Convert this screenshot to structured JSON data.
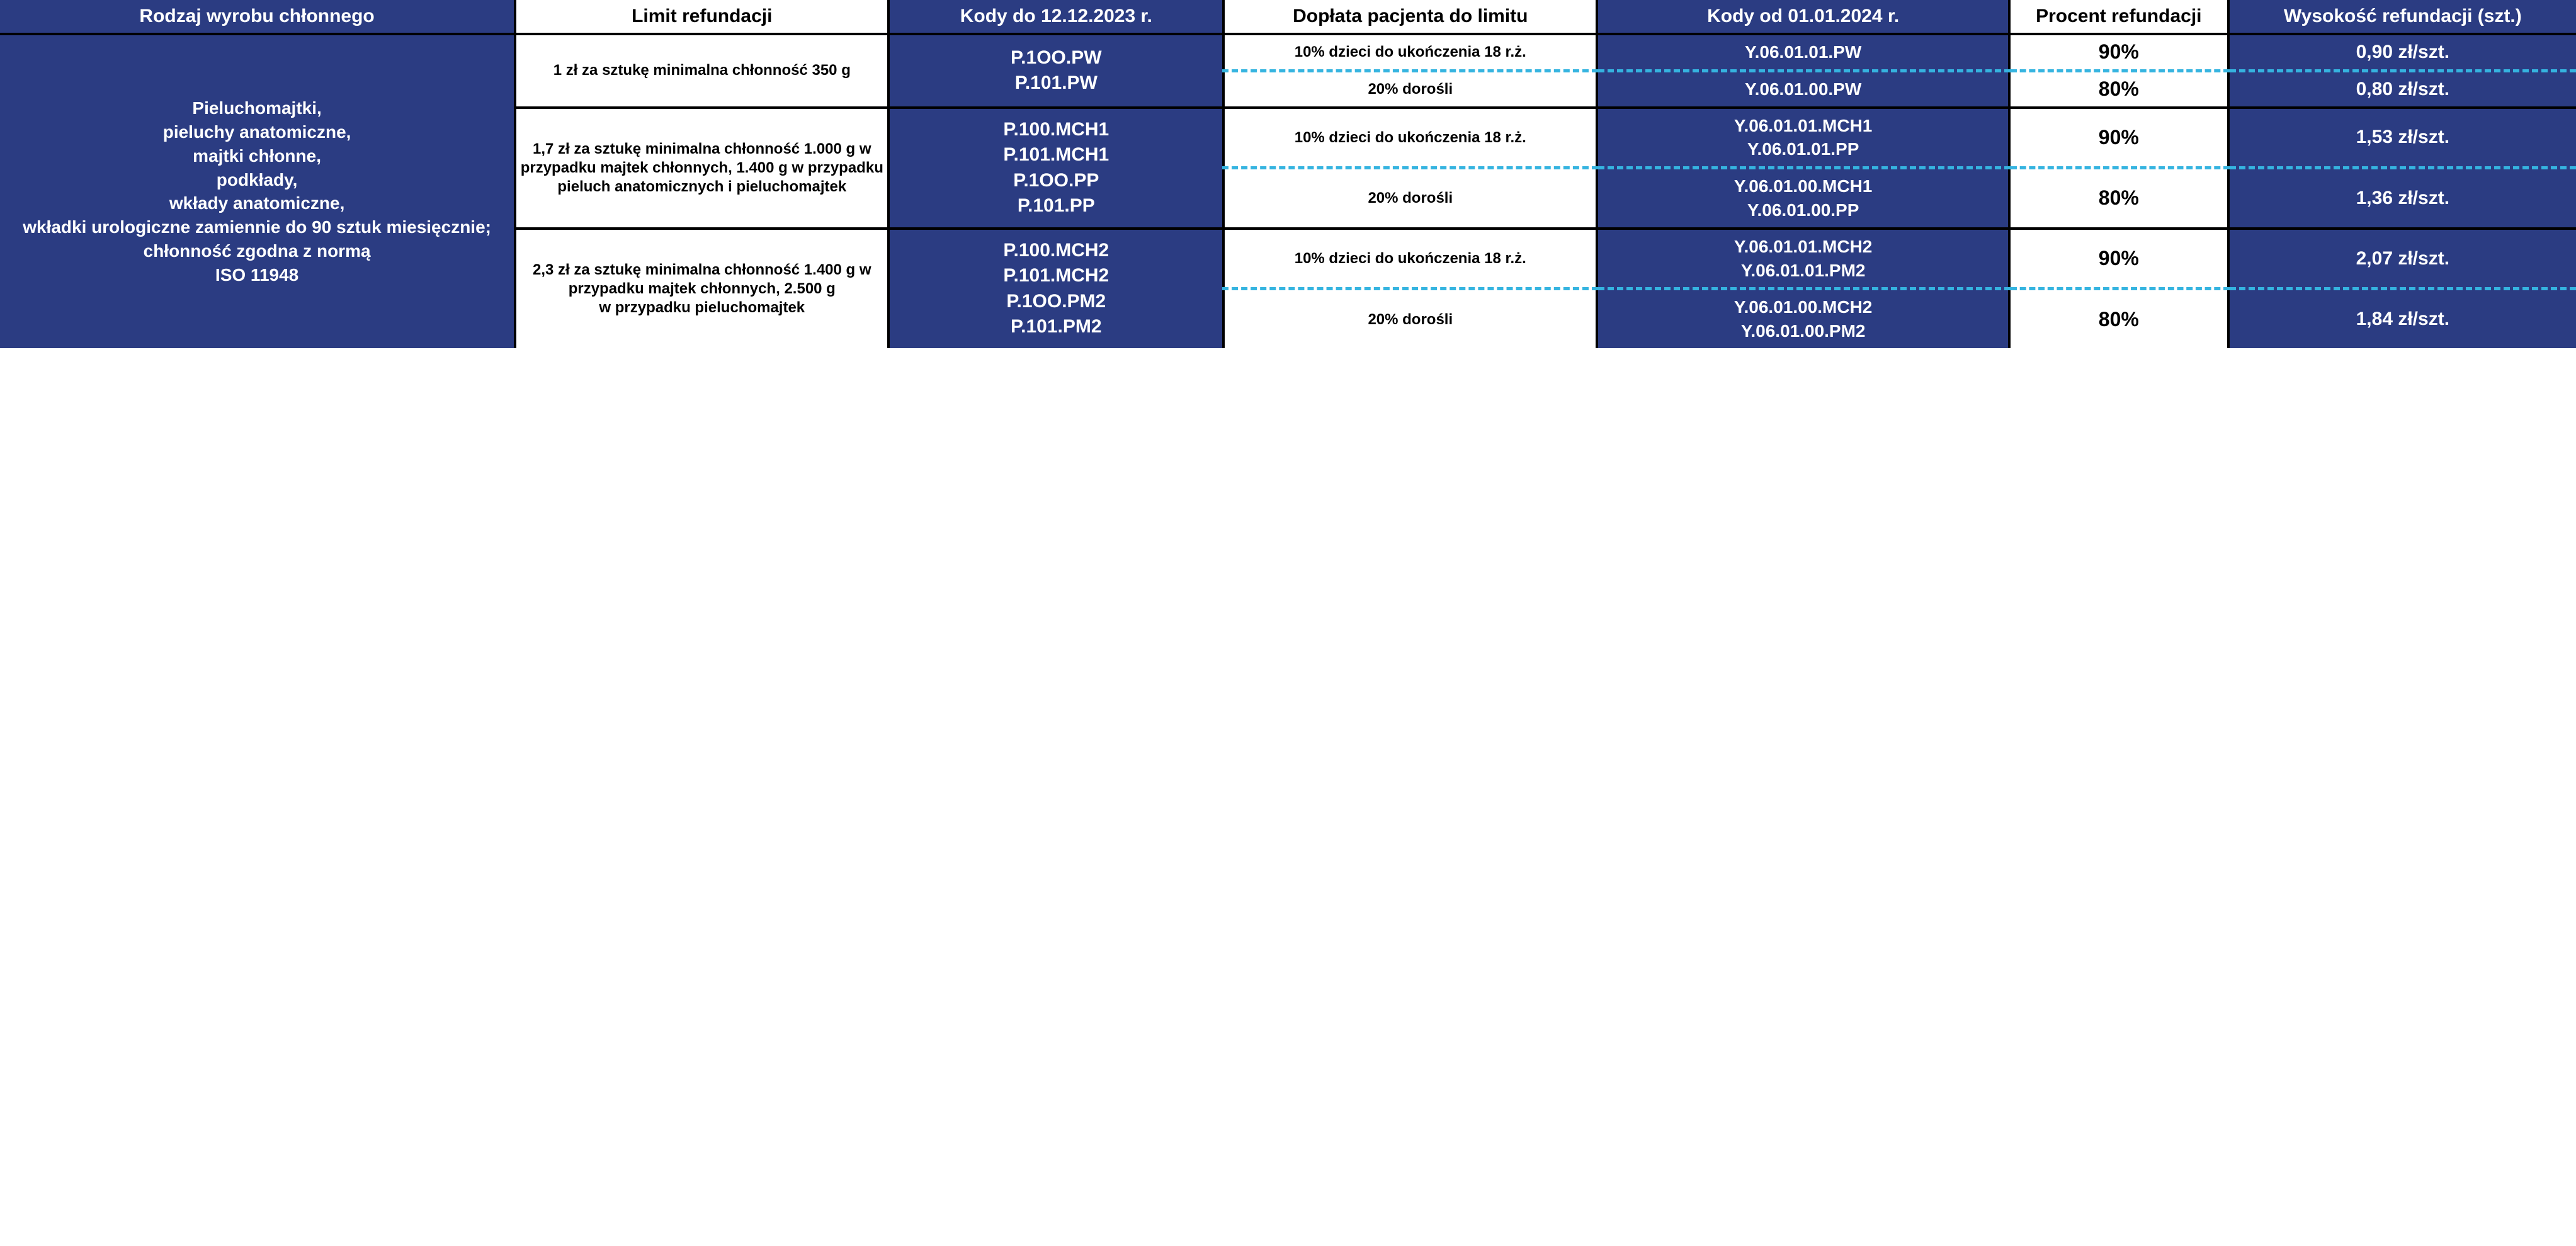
{
  "colors": {
    "blue": "#2b3c82",
    "dash": "#35b4e0",
    "black": "#000000",
    "white": "#ffffff"
  },
  "headers": {
    "c1": "Rodzaj wyrobu chłonnego",
    "c2": "Limit refundacji",
    "c3": "Kody do 12.12.2023 r.",
    "c4": "Dopłata pacjenta do limitu",
    "c5": "Kody od 01.01.2024 r.",
    "c6": "Procent refundacji",
    "c7": "Wysokość refundacji (szt.)"
  },
  "rowlabel": "Pieluchomajtki,\npieluchy anatomiczne,\nmajtki chłonne,\npodkłady,\nwkłady anatomiczne,\nwkładki urologiczne zamiennie do 90 sztuk miesięcznie; chłonność zgodna z normą\nISO 11948",
  "groups": [
    {
      "limit": "1 zł za sztukę minimalna chłonność 350 g",
      "codes_old": "P.1OO.PW\nP.101.PW",
      "rows": [
        {
          "surcharge": "10% dzieci do ukończenia 18 r.ż.",
          "codes_new": "Y.06.01.01.PW",
          "pct": "90%",
          "amt": "0,90 zł/szt."
        },
        {
          "surcharge": "20% dorośli",
          "codes_new": "Y.06.01.00.PW",
          "pct": "80%",
          "amt": "0,80 zł/szt."
        }
      ]
    },
    {
      "limit": "1,7 zł za sztukę minimalna chłonność 1.000 g w przypadku majtek chłonnych, 1.400 g w przypadku pieluch anatomicznych i pieluchomajtek",
      "codes_old": "P.100.MCH1\nP.101.MCH1\nP.1OO.PP\nP.101.PP",
      "rows": [
        {
          "surcharge": "10% dzieci do ukończenia 18 r.ż.",
          "codes_new": "Y.06.01.01.MCH1\nY.06.01.01.PP",
          "pct": "90%",
          "amt": "1,53 zł/szt."
        },
        {
          "surcharge": "20% dorośli",
          "codes_new": "Y.06.01.00.MCH1\nY.06.01.00.PP",
          "pct": "80%",
          "amt": "1,36 zł/szt."
        }
      ]
    },
    {
      "limit": "2,3 zł za sztukę minimalna chłonność 1.400 g w przypadku majtek chłonnych, 2.500 g\nw przypadku pieluchomajtek",
      "codes_old": "P.100.MCH2\nP.101.MCH2\nP.1OO.PM2\nP.101.PM2",
      "rows": [
        {
          "surcharge": "10% dzieci do ukończenia 18 r.ż.",
          "codes_new": "Y.06.01.01.MCH2\nY.06.01.01.PM2",
          "pct": "90%",
          "amt": "2,07 zł/szt."
        },
        {
          "surcharge": "20% dorośli",
          "codes_new": "Y.06.01.00.MCH2\nY.06.01.00.PM2",
          "pct": "80%",
          "amt": "1,84 zł/szt."
        }
      ]
    }
  ]
}
